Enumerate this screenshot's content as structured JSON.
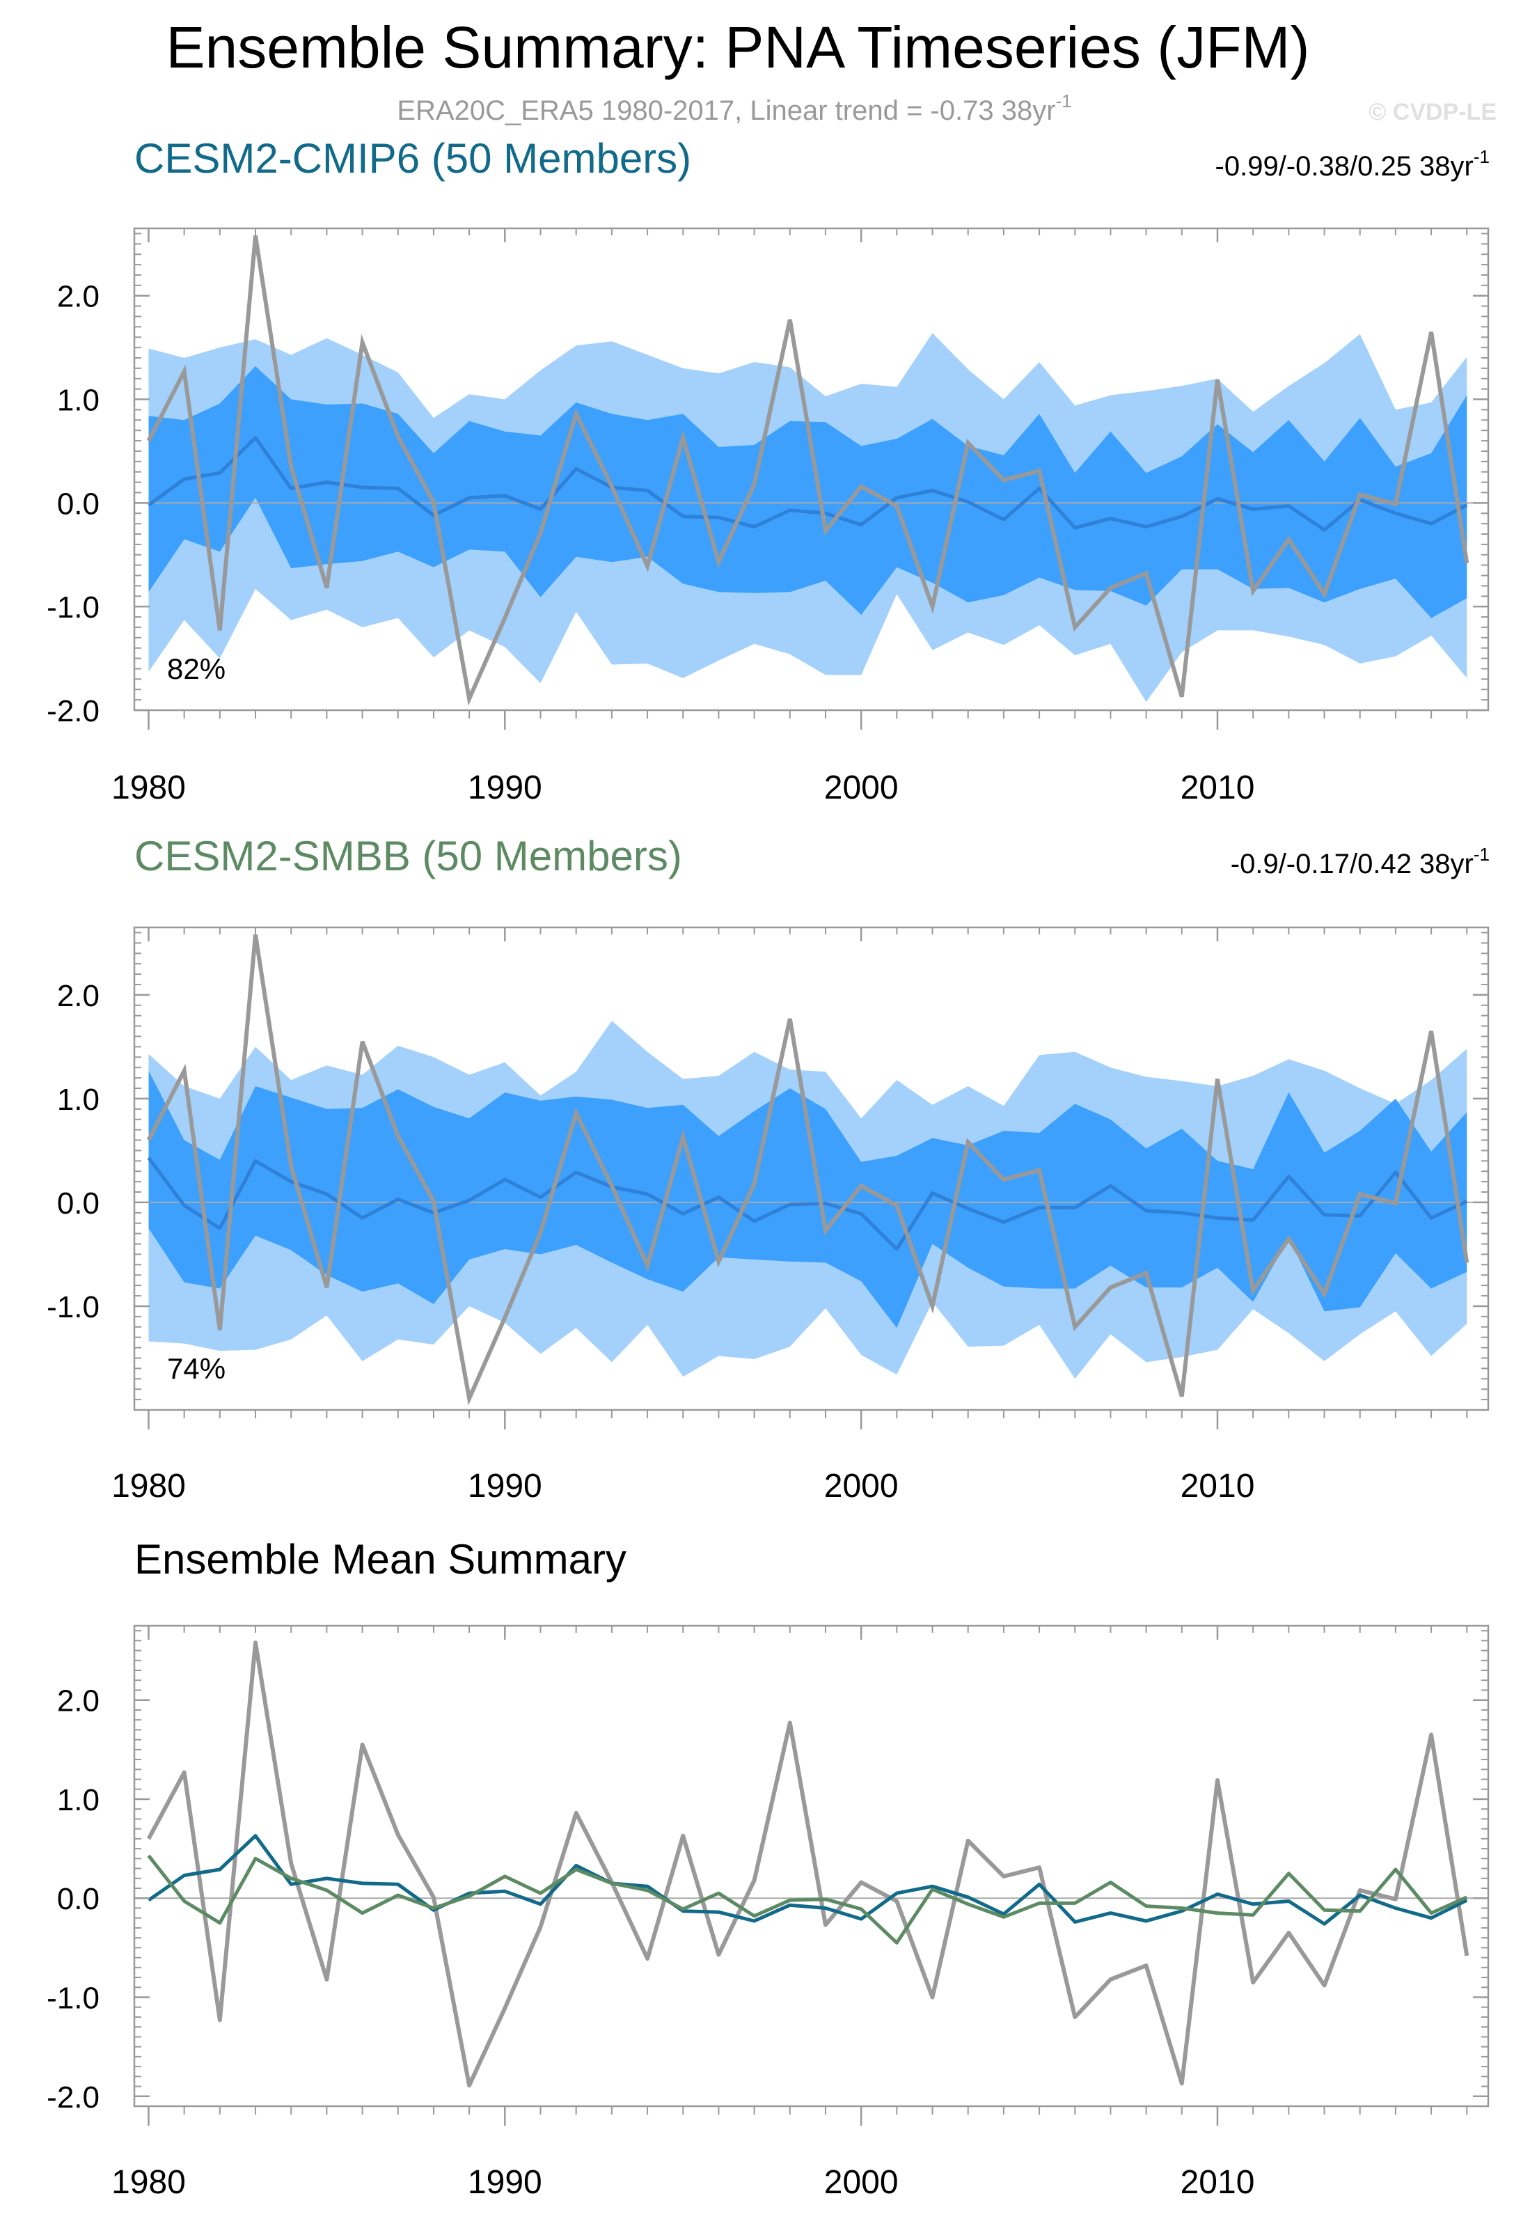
{
  "title": "Ensemble Summary: PNA Timeseries (JFM)",
  "subtitle": "ERA20C_ERA5 1980-2017, Linear trend = -0.73 38yr",
  "subtitle_sup": "-1",
  "watermark": "© CVDP-LE",
  "colors": {
    "outer_band": "#a3d1fc",
    "inner_band": "#3ca0fc",
    "median_line": "#2f80d8",
    "obs_line": "#999999",
    "cmip6": "#116a8a",
    "smbb": "#5c8a62"
  },
  "chart_data": [
    {
      "type": "area",
      "name": "CESM2-CMIP6 (50 Members)",
      "title_color": "#116a8a",
      "trend_label": "-0.99/-0.38/0.25 38yr",
      "trend_sup": "-1",
      "pct_label": "82%",
      "xlim": [
        1979.6,
        2017.6
      ],
      "ylim": [
        -2.0,
        2.65
      ],
      "x_ticks": [
        1980,
        1990,
        2000,
        2010
      ],
      "x_tick_labels": [
        "1980",
        "1990",
        "2000",
        "2010"
      ],
      "y_ticks": [
        2.0,
        1.0,
        0.0,
        -1.0,
        -2.0
      ],
      "y_tick_labels": [
        "2.0",
        "1.0",
        "0.0",
        "-1.0",
        "-2.0"
      ],
      "x": [
        1980,
        1981,
        1982,
        1983,
        1984,
        1985,
        1986,
        1987,
        1988,
        1989,
        1990,
        1991,
        1992,
        1993,
        1994,
        1995,
        1996,
        1997,
        1998,
        1999,
        2000,
        2001,
        2002,
        2003,
        2004,
        2005,
        2006,
        2007,
        2008,
        2009,
        2010,
        2011,
        2012,
        2013,
        2014,
        2015,
        2016,
        2017
      ],
      "series": [
        {
          "name": "p97.5",
          "values": [
            1.49,
            1.4,
            1.5,
            1.58,
            1.43,
            1.59,
            1.43,
            1.26,
            0.82,
            1.05,
            1.0,
            1.28,
            1.52,
            1.56,
            1.43,
            1.3,
            1.25,
            1.36,
            1.31,
            1.03,
            1.15,
            1.12,
            1.64,
            1.29,
            1.0,
            1.36,
            0.94,
            1.04,
            1.08,
            1.13,
            1.2,
            0.88,
            1.13,
            1.35,
            1.63,
            0.9,
            0.97,
            1.41
          ]
        },
        {
          "name": "p84",
          "values": [
            0.84,
            0.8,
            0.96,
            1.32,
            1.0,
            0.95,
            0.96,
            0.86,
            0.48,
            0.79,
            0.69,
            0.65,
            0.97,
            0.86,
            0.8,
            0.86,
            0.54,
            0.56,
            0.79,
            0.78,
            0.55,
            0.62,
            0.81,
            0.55,
            0.46,
            0.86,
            0.29,
            0.69,
            0.29,
            0.45,
            0.76,
            0.49,
            0.8,
            0.4,
            0.82,
            0.35,
            0.48,
            1.04
          ]
        },
        {
          "name": "median",
          "values": [
            -0.02,
            0.23,
            0.29,
            0.63,
            0.14,
            0.2,
            0.15,
            0.14,
            -0.12,
            0.05,
            0.07,
            -0.06,
            0.33,
            0.15,
            0.12,
            -0.13,
            -0.14,
            -0.23,
            -0.07,
            -0.1,
            -0.21,
            0.05,
            0.12,
            0.01,
            -0.16,
            0.14,
            -0.24,
            -0.15,
            -0.23,
            -0.13,
            0.04,
            -0.06,
            -0.03,
            -0.26,
            0.03,
            -0.1,
            -0.2,
            -0.02
          ]
        },
        {
          "name": "p16",
          "values": [
            -0.86,
            -0.35,
            -0.47,
            0.05,
            -0.63,
            -0.59,
            -0.56,
            -0.47,
            -0.62,
            -0.45,
            -0.47,
            -0.91,
            -0.52,
            -0.57,
            -0.52,
            -0.78,
            -0.86,
            -0.87,
            -0.86,
            -0.75,
            -1.08,
            -0.62,
            -0.77,
            -0.96,
            -0.89,
            -0.72,
            -0.84,
            -0.85,
            -0.99,
            -0.64,
            -0.64,
            -0.83,
            -0.82,
            -0.96,
            -0.83,
            -0.73,
            -1.11,
            -0.92
          ]
        },
        {
          "name": "p2.5",
          "values": [
            -1.63,
            -1.13,
            -1.5,
            -0.83,
            -1.13,
            -1.03,
            -1.2,
            -1.11,
            -1.49,
            -1.23,
            -1.39,
            -1.74,
            -1.05,
            -1.56,
            -1.55,
            -1.69,
            -1.52,
            -1.36,
            -1.46,
            -1.66,
            -1.66,
            -0.88,
            -1.42,
            -1.25,
            -1.37,
            -1.18,
            -1.47,
            -1.36,
            -1.92,
            -1.44,
            -1.23,
            -1.23,
            -1.29,
            -1.37,
            -1.55,
            -1.48,
            -1.28,
            -1.69
          ]
        },
        {
          "name": "ERA20C_ERA5",
          "values": [
            0.6,
            1.27,
            -1.23,
            2.58,
            0.35,
            -0.82,
            1.55,
            0.64,
            0.01,
            -1.89,
            -1.11,
            -0.29,
            0.86,
            0.16,
            -0.61,
            0.63,
            -0.57,
            0.18,
            1.77,
            -0.27,
            0.16,
            -0.03,
            -1.0,
            0.58,
            0.22,
            0.31,
            -1.2,
            -0.82,
            -0.68,
            -1.87,
            1.19,
            -0.85,
            -0.35,
            -0.88,
            0.08,
            -0.01,
            1.65,
            -0.58
          ]
        }
      ]
    },
    {
      "type": "area",
      "name": "CESM2-SMBB (50 Members)",
      "title_color": "#5c8a62",
      "trend_label": "-0.9/-0.17/0.42 38yr",
      "trend_sup": "-1",
      "pct_label": "74%",
      "xlim": [
        1979.6,
        2017.6
      ],
      "ylim": [
        -2.0,
        2.65
      ],
      "x_ticks": [
        1980,
        1990,
        2000,
        2010
      ],
      "x_tick_labels": [
        "1980",
        "1990",
        "2000",
        "2010"
      ],
      "y_ticks": [
        2.0,
        1.0,
        0.0,
        -1.0
      ],
      "y_tick_labels": [
        "2.0",
        "1.0",
        "0.0",
        "-1.0"
      ],
      "x": [
        1980,
        1981,
        1982,
        1983,
        1984,
        1985,
        1986,
        1987,
        1988,
        1989,
        1990,
        1991,
        1992,
        1993,
        1994,
        1995,
        1996,
        1997,
        1998,
        1999,
        2000,
        2001,
        2002,
        2003,
        2004,
        2005,
        2006,
        2007,
        2008,
        2009,
        2010,
        2011,
        2012,
        2013,
        2014,
        2015,
        2016,
        2017
      ],
      "series": [
        {
          "name": "p97.5",
          "values": [
            1.43,
            1.12,
            1.0,
            1.5,
            1.18,
            1.32,
            1.23,
            1.51,
            1.4,
            1.23,
            1.35,
            1.03,
            1.26,
            1.75,
            1.45,
            1.19,
            1.22,
            1.45,
            1.28,
            1.26,
            0.81,
            1.18,
            0.94,
            1.12,
            0.93,
            1.42,
            1.45,
            1.3,
            1.21,
            1.17,
            1.12,
            1.22,
            1.38,
            1.27,
            1.1,
            0.95,
            1.18,
            1.48
          ]
        },
        {
          "name": "p84",
          "values": [
            1.27,
            0.6,
            0.41,
            1.12,
            1.01,
            0.9,
            0.91,
            1.09,
            0.92,
            0.81,
            1.06,
            0.98,
            1.02,
            0.99,
            0.91,
            0.94,
            0.64,
            0.88,
            1.1,
            0.9,
            0.39,
            0.45,
            0.62,
            0.55,
            0.69,
            0.67,
            0.95,
            0.8,
            0.52,
            0.71,
            0.4,
            0.32,
            1.06,
            0.48,
            0.69,
            1.0,
            0.49,
            0.87
          ]
        },
        {
          "name": "median",
          "values": [
            0.43,
            -0.03,
            -0.25,
            0.4,
            0.2,
            0.08,
            -0.15,
            0.03,
            -0.1,
            0.02,
            0.22,
            0.05,
            0.29,
            0.15,
            0.08,
            -0.11,
            0.05,
            -0.18,
            -0.02,
            -0.01,
            -0.11,
            -0.45,
            0.09,
            -0.06,
            -0.19,
            -0.05,
            -0.05,
            0.16,
            -0.08,
            -0.1,
            -0.15,
            -0.17,
            0.25,
            -0.12,
            -0.13,
            0.29,
            -0.15,
            0.01
          ]
        },
        {
          "name": "p16",
          "values": [
            -0.25,
            -0.77,
            -0.83,
            -0.32,
            -0.46,
            -0.7,
            -0.86,
            -0.78,
            -0.98,
            -0.55,
            -0.45,
            -0.5,
            -0.41,
            -0.58,
            -0.74,
            -0.86,
            -0.53,
            -0.55,
            -0.57,
            -0.58,
            -0.76,
            -1.21,
            -0.4,
            -0.63,
            -0.81,
            -0.83,
            -0.83,
            -0.61,
            -0.82,
            -0.82,
            -0.63,
            -0.96,
            -0.34,
            -1.05,
            -1.01,
            -0.49,
            -0.83,
            -0.67
          ]
        },
        {
          "name": "p2.5",
          "values": [
            -1.34,
            -1.36,
            -1.43,
            -1.42,
            -1.32,
            -1.09,
            -1.53,
            -1.32,
            -1.37,
            -1.0,
            -1.16,
            -1.46,
            -1.21,
            -1.54,
            -1.18,
            -1.68,
            -1.48,
            -1.51,
            -1.39,
            -1.02,
            -1.47,
            -1.66,
            -0.96,
            -1.39,
            -1.38,
            -1.18,
            -1.7,
            -1.27,
            -1.54,
            -1.49,
            -1.42,
            -1.03,
            -1.26,
            -1.53,
            -1.27,
            -1.05,
            -1.48,
            -1.17
          ]
        },
        {
          "name": "ERA20C_ERA5",
          "values": [
            0.6,
            1.27,
            -1.23,
            2.58,
            0.35,
            -0.82,
            1.55,
            0.64,
            0.01,
            -1.89,
            -1.11,
            -0.29,
            0.86,
            0.16,
            -0.61,
            0.63,
            -0.57,
            0.18,
            1.77,
            -0.27,
            0.16,
            -0.03,
            -1.0,
            0.58,
            0.22,
            0.31,
            -1.2,
            -0.82,
            -0.68,
            -1.87,
            1.19,
            -0.85,
            -0.35,
            -0.88,
            0.08,
            -0.01,
            1.65,
            -0.58
          ]
        }
      ]
    },
    {
      "type": "line",
      "name": "Ensemble Mean Summary",
      "title_color": "#000000",
      "xlim": [
        1979.6,
        2017.6
      ],
      "ylim": [
        -2.1,
        2.75
      ],
      "x_ticks": [
        1980,
        1990,
        2000,
        2010
      ],
      "x_tick_labels": [
        "1980",
        "1990",
        "2000",
        "2010"
      ],
      "y_ticks": [
        2.0,
        1.0,
        0.0,
        -1.0,
        -2.0
      ],
      "y_tick_labels": [
        "2.0",
        "1.0",
        "0.0",
        "-1.0",
        "-2.0"
      ],
      "x": [
        1980,
        1981,
        1982,
        1983,
        1984,
        1985,
        1986,
        1987,
        1988,
        1989,
        1990,
        1991,
        1992,
        1993,
        1994,
        1995,
        1996,
        1997,
        1998,
        1999,
        2000,
        2001,
        2002,
        2003,
        2004,
        2005,
        2006,
        2007,
        2008,
        2009,
        2010,
        2011,
        2012,
        2013,
        2014,
        2015,
        2016,
        2017
      ],
      "series": [
        {
          "name": "ERA20C_ERA5",
          "color": "#999999",
          "values": [
            0.6,
            1.27,
            -1.23,
            2.58,
            0.35,
            -0.82,
            1.55,
            0.64,
            0.01,
            -1.89,
            -1.11,
            -0.29,
            0.86,
            0.16,
            -0.61,
            0.63,
            -0.57,
            0.18,
            1.77,
            -0.27,
            0.16,
            -0.03,
            -1.0,
            0.58,
            0.22,
            0.31,
            -1.2,
            -0.82,
            -0.68,
            -1.87,
            1.19,
            -0.85,
            -0.35,
            -0.88,
            0.08,
            -0.01,
            1.65,
            -0.58
          ]
        },
        {
          "name": "CESM2-CMIP6",
          "color": "#116a8a",
          "values": [
            -0.02,
            0.23,
            0.29,
            0.63,
            0.14,
            0.2,
            0.15,
            0.14,
            -0.12,
            0.05,
            0.07,
            -0.06,
            0.33,
            0.15,
            0.12,
            -0.13,
            -0.14,
            -0.23,
            -0.07,
            -0.1,
            -0.21,
            0.05,
            0.12,
            0.01,
            -0.16,
            0.14,
            -0.24,
            -0.15,
            -0.23,
            -0.13,
            0.04,
            -0.06,
            -0.03,
            -0.26,
            0.03,
            -0.1,
            -0.2,
            -0.02
          ]
        },
        {
          "name": "CESM2-SMBB",
          "color": "#5c8a62",
          "values": [
            0.43,
            -0.03,
            -0.25,
            0.4,
            0.2,
            0.08,
            -0.15,
            0.03,
            -0.1,
            0.02,
            0.22,
            0.05,
            0.29,
            0.15,
            0.08,
            -0.11,
            0.05,
            -0.18,
            -0.02,
            -0.01,
            -0.11,
            -0.45,
            0.09,
            -0.06,
            -0.19,
            -0.05,
            -0.05,
            0.16,
            -0.08,
            -0.1,
            -0.15,
            -0.17,
            0.25,
            -0.12,
            -0.13,
            0.29,
            -0.15,
            0.01
          ]
        }
      ]
    }
  ]
}
